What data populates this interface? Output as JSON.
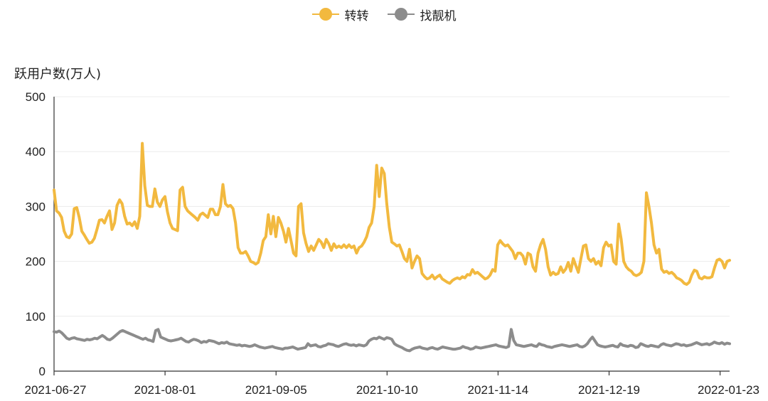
{
  "chart_data": {
    "type": "line",
    "ylabel": "跃用户数(万人)",
    "ylim": [
      0,
      500
    ],
    "yticks": [
      "0",
      "100",
      "200",
      "300",
      "400",
      "500"
    ],
    "x_range": [
      "2021-06-27",
      "2022-01-26"
    ],
    "xticks": [
      "2021-06-27",
      "2021-08-01",
      "2021-09-05",
      "2021-10-10",
      "2021-11-14",
      "2021-12-19",
      "2022-01-23"
    ],
    "grid": "horizontal",
    "legend_position": "top-center",
    "series": [
      {
        "name": "转转",
        "color": "#F2B93F",
        "values": [
          330,
          292,
          288,
          280,
          255,
          245,
          243,
          250,
          296,
          298,
          280,
          255,
          248,
          240,
          233,
          235,
          242,
          258,
          275,
          276,
          270,
          282,
          292,
          258,
          270,
          302,
          312,
          305,
          282,
          268,
          270,
          265,
          272,
          260,
          282,
          415,
          338,
          302,
          300,
          300,
          332,
          308,
          300,
          312,
          318,
          290,
          270,
          260,
          258,
          256,
          330,
          335,
          300,
          292,
          288,
          284,
          280,
          275,
          285,
          288,
          284,
          280,
          295,
          295,
          285,
          285,
          300,
          340,
          305,
          300,
          302,
          296,
          270,
          225,
          215,
          215,
          218,
          210,
          200,
          198,
          195,
          198,
          215,
          238,
          245,
          285,
          250,
          282,
          245,
          280,
          270,
          255,
          235,
          260,
          238,
          215,
          210,
          300,
          305,
          252,
          232,
          218,
          228,
          220,
          230,
          240,
          235,
          225,
          240,
          232,
          220,
          232,
          225,
          228,
          225,
          230,
          225,
          230,
          225,
          228,
          215,
          225,
          228,
          235,
          245,
          262,
          270,
          300,
          375,
          318,
          370,
          360,
          305,
          262,
          235,
          232,
          228,
          230,
          218,
          205,
          200,
          222,
          188,
          200,
          210,
          205,
          178,
          172,
          168,
          170,
          175,
          168,
          172,
          175,
          168,
          165,
          162,
          160,
          165,
          168,
          170,
          168,
          172,
          170,
          176,
          175,
          185,
          178,
          180,
          176,
          172,
          168,
          170,
          175,
          185,
          182,
          230,
          238,
          232,
          228,
          230,
          224,
          218,
          205,
          215,
          215,
          210,
          195,
          215,
          212,
          190,
          182,
          215,
          230,
          240,
          222,
          190,
          175,
          180,
          176,
          178,
          190,
          180,
          186,
          198,
          182,
          205,
          192,
          180,
          205,
          228,
          230,
          205,
          200,
          205,
          195,
          200,
          192,
          225,
          235,
          228,
          230,
          200,
          195,
          268,
          240,
          200,
          190,
          185,
          182,
          176,
          174,
          176,
          180,
          200,
          325,
          300,
          270,
          230,
          215,
          222,
          186,
          180,
          182,
          178,
          180,
          176,
          170,
          168,
          165,
          160,
          158,
          162,
          175,
          184,
          182,
          170,
          168,
          172,
          170,
          170,
          172,
          188,
          202,
          204,
          200,
          188,
          200,
          202
        ]
      },
      {
        "name": "找靓机",
        "color": "#8C8C8C",
        "values": [
          72,
          71,
          73,
          70,
          65,
          60,
          58,
          60,
          61,
          59,
          58,
          57,
          56,
          58,
          57,
          58,
          60,
          59,
          62,
          65,
          62,
          58,
          57,
          60,
          64,
          68,
          72,
          74,
          72,
          70,
          68,
          66,
          64,
          62,
          60,
          58,
          60,
          57,
          56,
          54,
          74,
          76,
          62,
          60,
          58,
          56,
          55,
          56,
          57,
          58,
          60,
          57,
          54,
          53,
          56,
          58,
          57,
          55,
          52,
          54,
          53,
          56,
          55,
          54,
          52,
          50,
          52,
          51,
          53,
          50,
          49,
          48,
          47,
          48,
          46,
          47,
          46,
          45,
          46,
          48,
          46,
          44,
          43,
          42,
          43,
          44,
          45,
          43,
          42,
          41,
          40,
          42,
          42,
          43,
          44,
          42,
          40,
          41,
          42,
          43,
          50,
          46,
          47,
          48,
          45,
          44,
          46,
          47,
          50,
          49,
          48,
          46,
          45,
          47,
          49,
          50,
          48,
          47,
          48,
          46,
          48,
          47,
          46,
          48,
          55,
          58,
          60,
          59,
          62,
          60,
          58,
          61,
          60,
          58,
          50,
          47,
          45,
          43,
          40,
          38,
          37,
          40,
          42,
          43,
          44,
          42,
          41,
          40,
          42,
          43,
          41,
          40,
          42,
          44,
          43,
          42,
          41,
          40,
          40,
          41,
          42,
          45,
          43,
          42,
          40,
          41,
          44,
          43,
          42,
          43,
          44,
          45,
          46,
          47,
          48,
          46,
          45,
          44,
          43,
          45,
          76,
          56,
          48,
          47,
          46,
          45,
          46,
          47,
          48,
          46,
          45,
          50,
          48,
          47,
          45,
          44,
          43,
          45,
          46,
          47,
          48,
          47,
          46,
          45,
          46,
          47,
          48,
          45,
          44,
          46,
          50,
          57,
          62,
          55,
          48,
          46,
          45,
          44,
          45,
          46,
          47,
          45,
          44,
          50,
          47,
          46,
          45,
          47,
          46,
          43,
          44,
          50,
          48,
          46,
          45,
          47,
          46,
          45,
          44,
          48,
          50,
          48,
          47,
          46,
          48,
          50,
          49,
          47,
          48,
          46,
          47,
          48,
          50,
          52,
          50,
          48,
          49,
          50,
          48,
          50,
          53,
          51,
          50,
          52,
          49,
          51,
          50
        ]
      }
    ]
  }
}
